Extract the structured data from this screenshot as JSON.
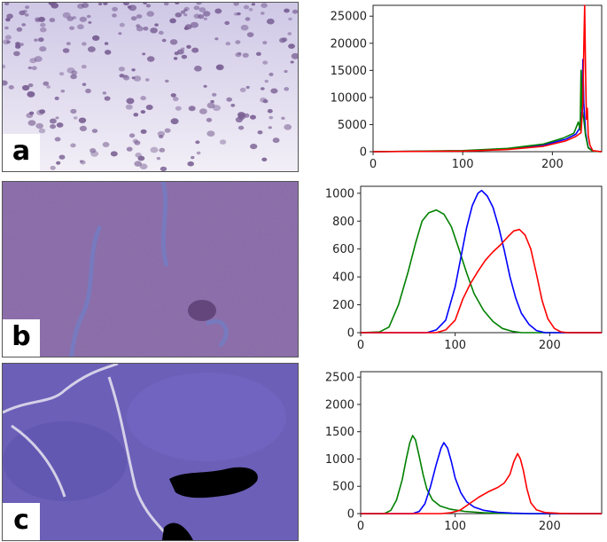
{
  "panels": [
    {
      "letter": "a",
      "chart_data": {
        "type": "line",
        "title": "",
        "xlabel": "",
        "ylabel": "",
        "xlim": [
          0,
          255
        ],
        "ylim": [
          0,
          27000
        ],
        "x_ticks": [
          "0",
          "100",
          "200"
        ],
        "y_ticks": [
          "0",
          "5000",
          "10000",
          "15000",
          "20000",
          "25000"
        ],
        "x_tick_values": [
          0,
          100,
          200
        ],
        "y_tick_values": [
          0,
          5000,
          10000,
          15000,
          20000,
          25000
        ],
        "series": [
          {
            "color": "#0000ff",
            "points": [
              [
                0,
                0
              ],
              [
                100,
                150
              ],
              [
                150,
                500
              ],
              [
                190,
                1200
              ],
              [
                215,
                2300
              ],
              [
                226,
                3200
              ],
              [
                230,
                4200
              ],
              [
                233,
                7500
              ],
              [
                234,
                17000
              ],
              [
                235,
                9000
              ],
              [
                237,
                3500
              ],
              [
                240,
                800
              ],
              [
                245,
                100
              ],
              [
                255,
                0
              ]
            ]
          },
          {
            "color": "#008000",
            "points": [
              [
                0,
                0
              ],
              [
                100,
                200
              ],
              [
                150,
                600
              ],
              [
                190,
                1400
              ],
              [
                212,
                2500
              ],
              [
                224,
                3400
              ],
              [
                229,
                5500
              ],
              [
                231,
                4000
              ],
              [
                232,
                15000
              ],
              [
                233,
                8000
              ],
              [
                235,
                6000
              ],
              [
                237,
                3000
              ],
              [
                240,
                700
              ],
              [
                245,
                100
              ],
              [
                255,
                0
              ]
            ]
          },
          {
            "color": "#ff0000",
            "points": [
              [
                0,
                0
              ],
              [
                100,
                100
              ],
              [
                150,
                400
              ],
              [
                190,
                1000
              ],
              [
                215,
                2000
              ],
              [
                226,
                2800
              ],
              [
                232,
                3500
              ],
              [
                234,
                9000
              ],
              [
                235,
                19000
              ],
              [
                236,
                27000
              ],
              [
                237,
                15000
              ],
              [
                238,
                6000
              ],
              [
                239,
                8000
              ],
              [
                240,
                3000
              ],
              [
                242,
                1200
              ],
              [
                245,
                200
              ],
              [
                255,
                0
              ]
            ]
          }
        ]
      }
    },
    {
      "letter": "b",
      "chart_data": {
        "type": "line",
        "title": "",
        "xlabel": "",
        "ylabel": "",
        "xlim": [
          0,
          255
        ],
        "ylim": [
          0,
          1050
        ],
        "x_ticks": [
          "0",
          "100",
          "200"
        ],
        "y_ticks": [
          "0",
          "200",
          "400",
          "600",
          "800",
          "1000"
        ],
        "x_tick_values": [
          0,
          100,
          200
        ],
        "y_tick_values": [
          0,
          200,
          400,
          600,
          800,
          1000
        ],
        "series": [
          {
            "color": "#008000",
            "points": [
              [
                0,
                0
              ],
              [
                20,
                5
              ],
              [
                30,
                40
              ],
              [
                40,
                200
              ],
              [
                50,
                430
              ],
              [
                58,
                640
              ],
              [
                65,
                800
              ],
              [
                72,
                860
              ],
              [
                80,
                880
              ],
              [
                88,
                850
              ],
              [
                96,
                760
              ],
              [
                104,
                600
              ],
              [
                112,
                430
              ],
              [
                120,
                280
              ],
              [
                130,
                160
              ],
              [
                140,
                80
              ],
              [
                150,
                30
              ],
              [
                160,
                10
              ],
              [
                170,
                0
              ],
              [
                255,
                0
              ]
            ]
          },
          {
            "color": "#0000ff",
            "points": [
              [
                0,
                0
              ],
              [
                70,
                0
              ],
              [
                80,
                20
              ],
              [
                90,
                90
              ],
              [
                100,
                330
              ],
              [
                106,
                540
              ],
              [
                112,
                750
              ],
              [
                118,
                910
              ],
              [
                124,
                1000
              ],
              [
                128,
                1020
              ],
              [
                134,
                980
              ],
              [
                140,
                900
              ],
              [
                146,
                760
              ],
              [
                152,
                590
              ],
              [
                158,
                400
              ],
              [
                164,
                250
              ],
              [
                170,
                140
              ],
              [
                178,
                60
              ],
              [
                186,
                15
              ],
              [
                195,
                0
              ],
              [
                255,
                0
              ]
            ]
          },
          {
            "color": "#ff0000",
            "points": [
              [
                0,
                0
              ],
              [
                80,
                0
              ],
              [
                90,
                20
              ],
              [
                100,
                90
              ],
              [
                108,
                240
              ],
              [
                116,
                350
              ],
              [
                124,
                440
              ],
              [
                132,
                520
              ],
              [
                140,
                580
              ],
              [
                148,
                630
              ],
              [
                156,
                690
              ],
              [
                162,
                730
              ],
              [
                168,
                740
              ],
              [
                174,
                700
              ],
              [
                180,
                600
              ],
              [
                186,
                420
              ],
              [
                192,
                230
              ],
              [
                198,
                100
              ],
              [
                205,
                30
              ],
              [
                212,
                5
              ],
              [
                220,
                0
              ],
              [
                255,
                0
              ]
            ]
          }
        ]
      }
    },
    {
      "letter": "c",
      "chart_data": {
        "type": "line",
        "title": "",
        "xlabel": "",
        "ylabel": "",
        "xlim": [
          0,
          255
        ],
        "ylim": [
          0,
          2600
        ],
        "x_ticks": [
          "0",
          "100",
          "200"
        ],
        "y_ticks": [
          "0",
          "500",
          "1000",
          "1500",
          "2000",
          "2500"
        ],
        "x_tick_values": [
          0,
          100,
          200
        ],
        "y_tick_values": [
          0,
          500,
          1000,
          1500,
          2000,
          2500
        ],
        "series": [
          {
            "color": "#008000",
            "points": [
              [
                0,
                0
              ],
              [
                25,
                0
              ],
              [
                32,
                60
              ],
              [
                38,
                250
              ],
              [
                44,
                620
              ],
              [
                48,
                980
              ],
              [
                52,
                1300
              ],
              [
                55,
                1430
              ],
              [
                58,
                1350
              ],
              [
                62,
                1050
              ],
              [
                66,
                720
              ],
              [
                70,
                450
              ],
              [
                76,
                250
              ],
              [
                84,
                140
              ],
              [
                95,
                80
              ],
              [
                110,
                40
              ],
              [
                130,
                15
              ],
              [
                150,
                5
              ],
              [
                170,
                0
              ],
              [
                255,
                0
              ]
            ]
          },
          {
            "color": "#0000ff",
            "points": [
              [
                0,
                0
              ],
              [
                55,
                0
              ],
              [
                62,
                40
              ],
              [
                68,
                180
              ],
              [
                74,
                500
              ],
              [
                80,
                900
              ],
              [
                85,
                1200
              ],
              [
                88,
                1300
              ],
              [
                92,
                1200
              ],
              [
                96,
                950
              ],
              [
                100,
                650
              ],
              [
                106,
                380
              ],
              [
                112,
                220
              ],
              [
                120,
                120
              ],
              [
                130,
                60
              ],
              [
                145,
                25
              ],
              [
                160,
                10
              ],
              [
                180,
                0
              ],
              [
                255,
                0
              ]
            ]
          },
          {
            "color": "#ff0000",
            "points": [
              [
                0,
                0
              ],
              [
                85,
                0
              ],
              [
                95,
                15
              ],
              [
                105,
                60
              ],
              [
                115,
                180
              ],
              [
                125,
                300
              ],
              [
                135,
                400
              ],
              [
                145,
                480
              ],
              [
                152,
                560
              ],
              [
                158,
                720
              ],
              [
                162,
                950
              ],
              [
                166,
                1100
              ],
              [
                169,
                1000
              ],
              [
                172,
                800
              ],
              [
                176,
                450
              ],
              [
                180,
                200
              ],
              [
                186,
                70
              ],
              [
                195,
                20
              ],
              [
                210,
                5
              ],
              [
                230,
                0
              ],
              [
                255,
                0
              ]
            ]
          }
        ]
      }
    }
  ]
}
